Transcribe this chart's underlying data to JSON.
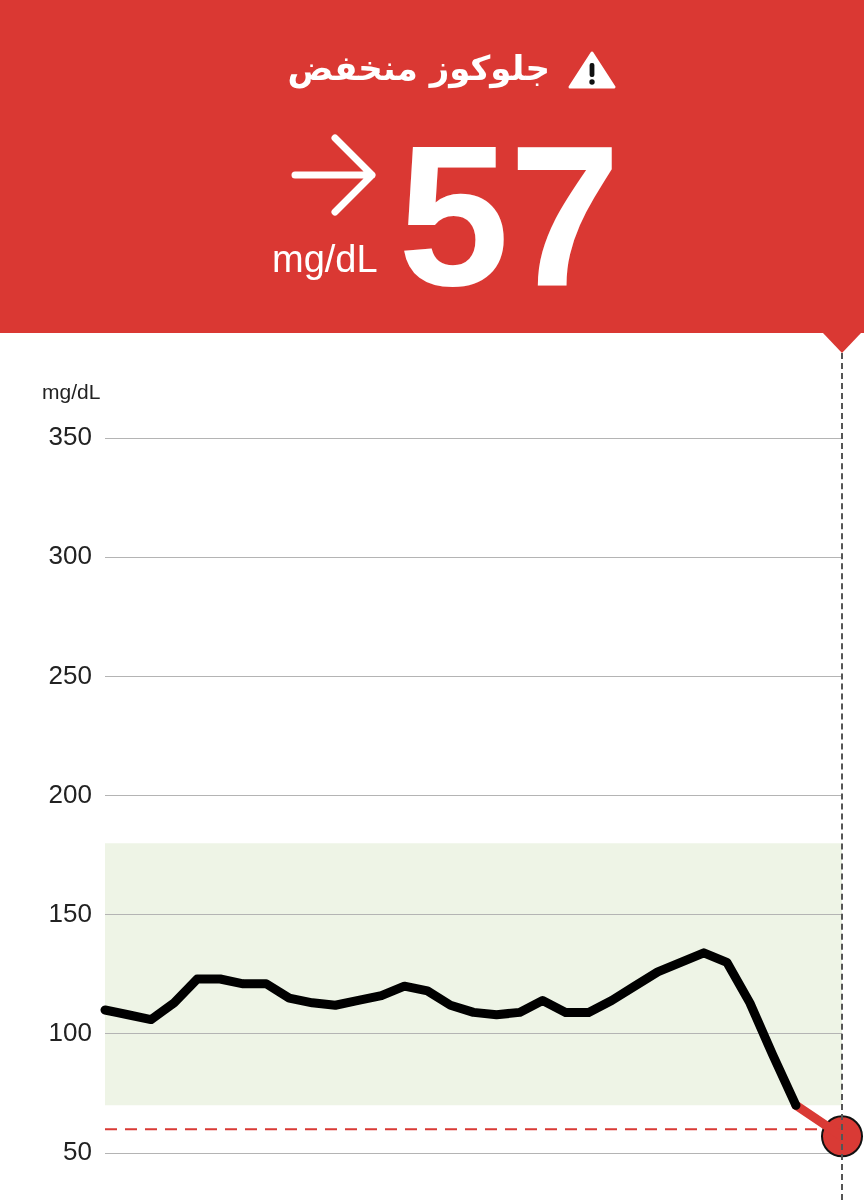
{
  "chart_data": {
    "type": "line",
    "title": "جلوكوز منخفض",
    "annotations": [
      "57",
      "mg/dL"
    ],
    "ylabel": "mg/dL",
    "categories": [
      null,
      null,
      null,
      null,
      null,
      null,
      null,
      null,
      null,
      null,
      null,
      null,
      null,
      null,
      null,
      null,
      null,
      null,
      null,
      null,
      null,
      null,
      null,
      null,
      null,
      null,
      null,
      null,
      null,
      null,
      null,
      null,
      null
    ],
    "series": [
      {
        "type": "line",
        "color": "#000000",
        "values": [
          110,
          108,
          106,
          113,
          123,
          123,
          121,
          121,
          115,
          113,
          112,
          114,
          116,
          120,
          118,
          112,
          109,
          108,
          109,
          114,
          109,
          109,
          114,
          120,
          126,
          130,
          134,
          130,
          113,
          91,
          70,
          null,
          null
        ]
      },
      {
        "type": "line",
        "color": "#d93a35",
        "values": [
          null,
          null,
          null,
          null,
          null,
          null,
          null,
          null,
          null,
          null,
          null,
          null,
          null,
          null,
          null,
          null,
          null,
          null,
          null,
          null,
          null,
          null,
          null,
          null,
          null,
          null,
          null,
          null,
          null,
          null,
          70,
          null,
          57
        ]
      },
      {
        "type": "scatter",
        "color": "#d93a35",
        "marker": "circle",
        "values": [
          null,
          null,
          null,
          null,
          null,
          null,
          null,
          null,
          null,
          null,
          null,
          null,
          null,
          null,
          null,
          null,
          null,
          null,
          null,
          null,
          null,
          null,
          null,
          null,
          null,
          null,
          null,
          null,
          null,
          null,
          null,
          null,
          57
        ]
      }
    ],
    "ylim": [
      50,
      350
    ],
    "yticks": [
      50,
      100,
      150,
      200,
      250,
      300,
      350
    ],
    "grid": "y",
    "tick_labels": "y",
    "bands": [
      {
        "axis": "y",
        "from": 70,
        "to": 180,
        "color": "#eef4e6"
      }
    ],
    "ref_lines": [
      {
        "axis": "y",
        "value": 60,
        "color": "#d93a35",
        "line_style": "dashed"
      }
    ]
  }
}
